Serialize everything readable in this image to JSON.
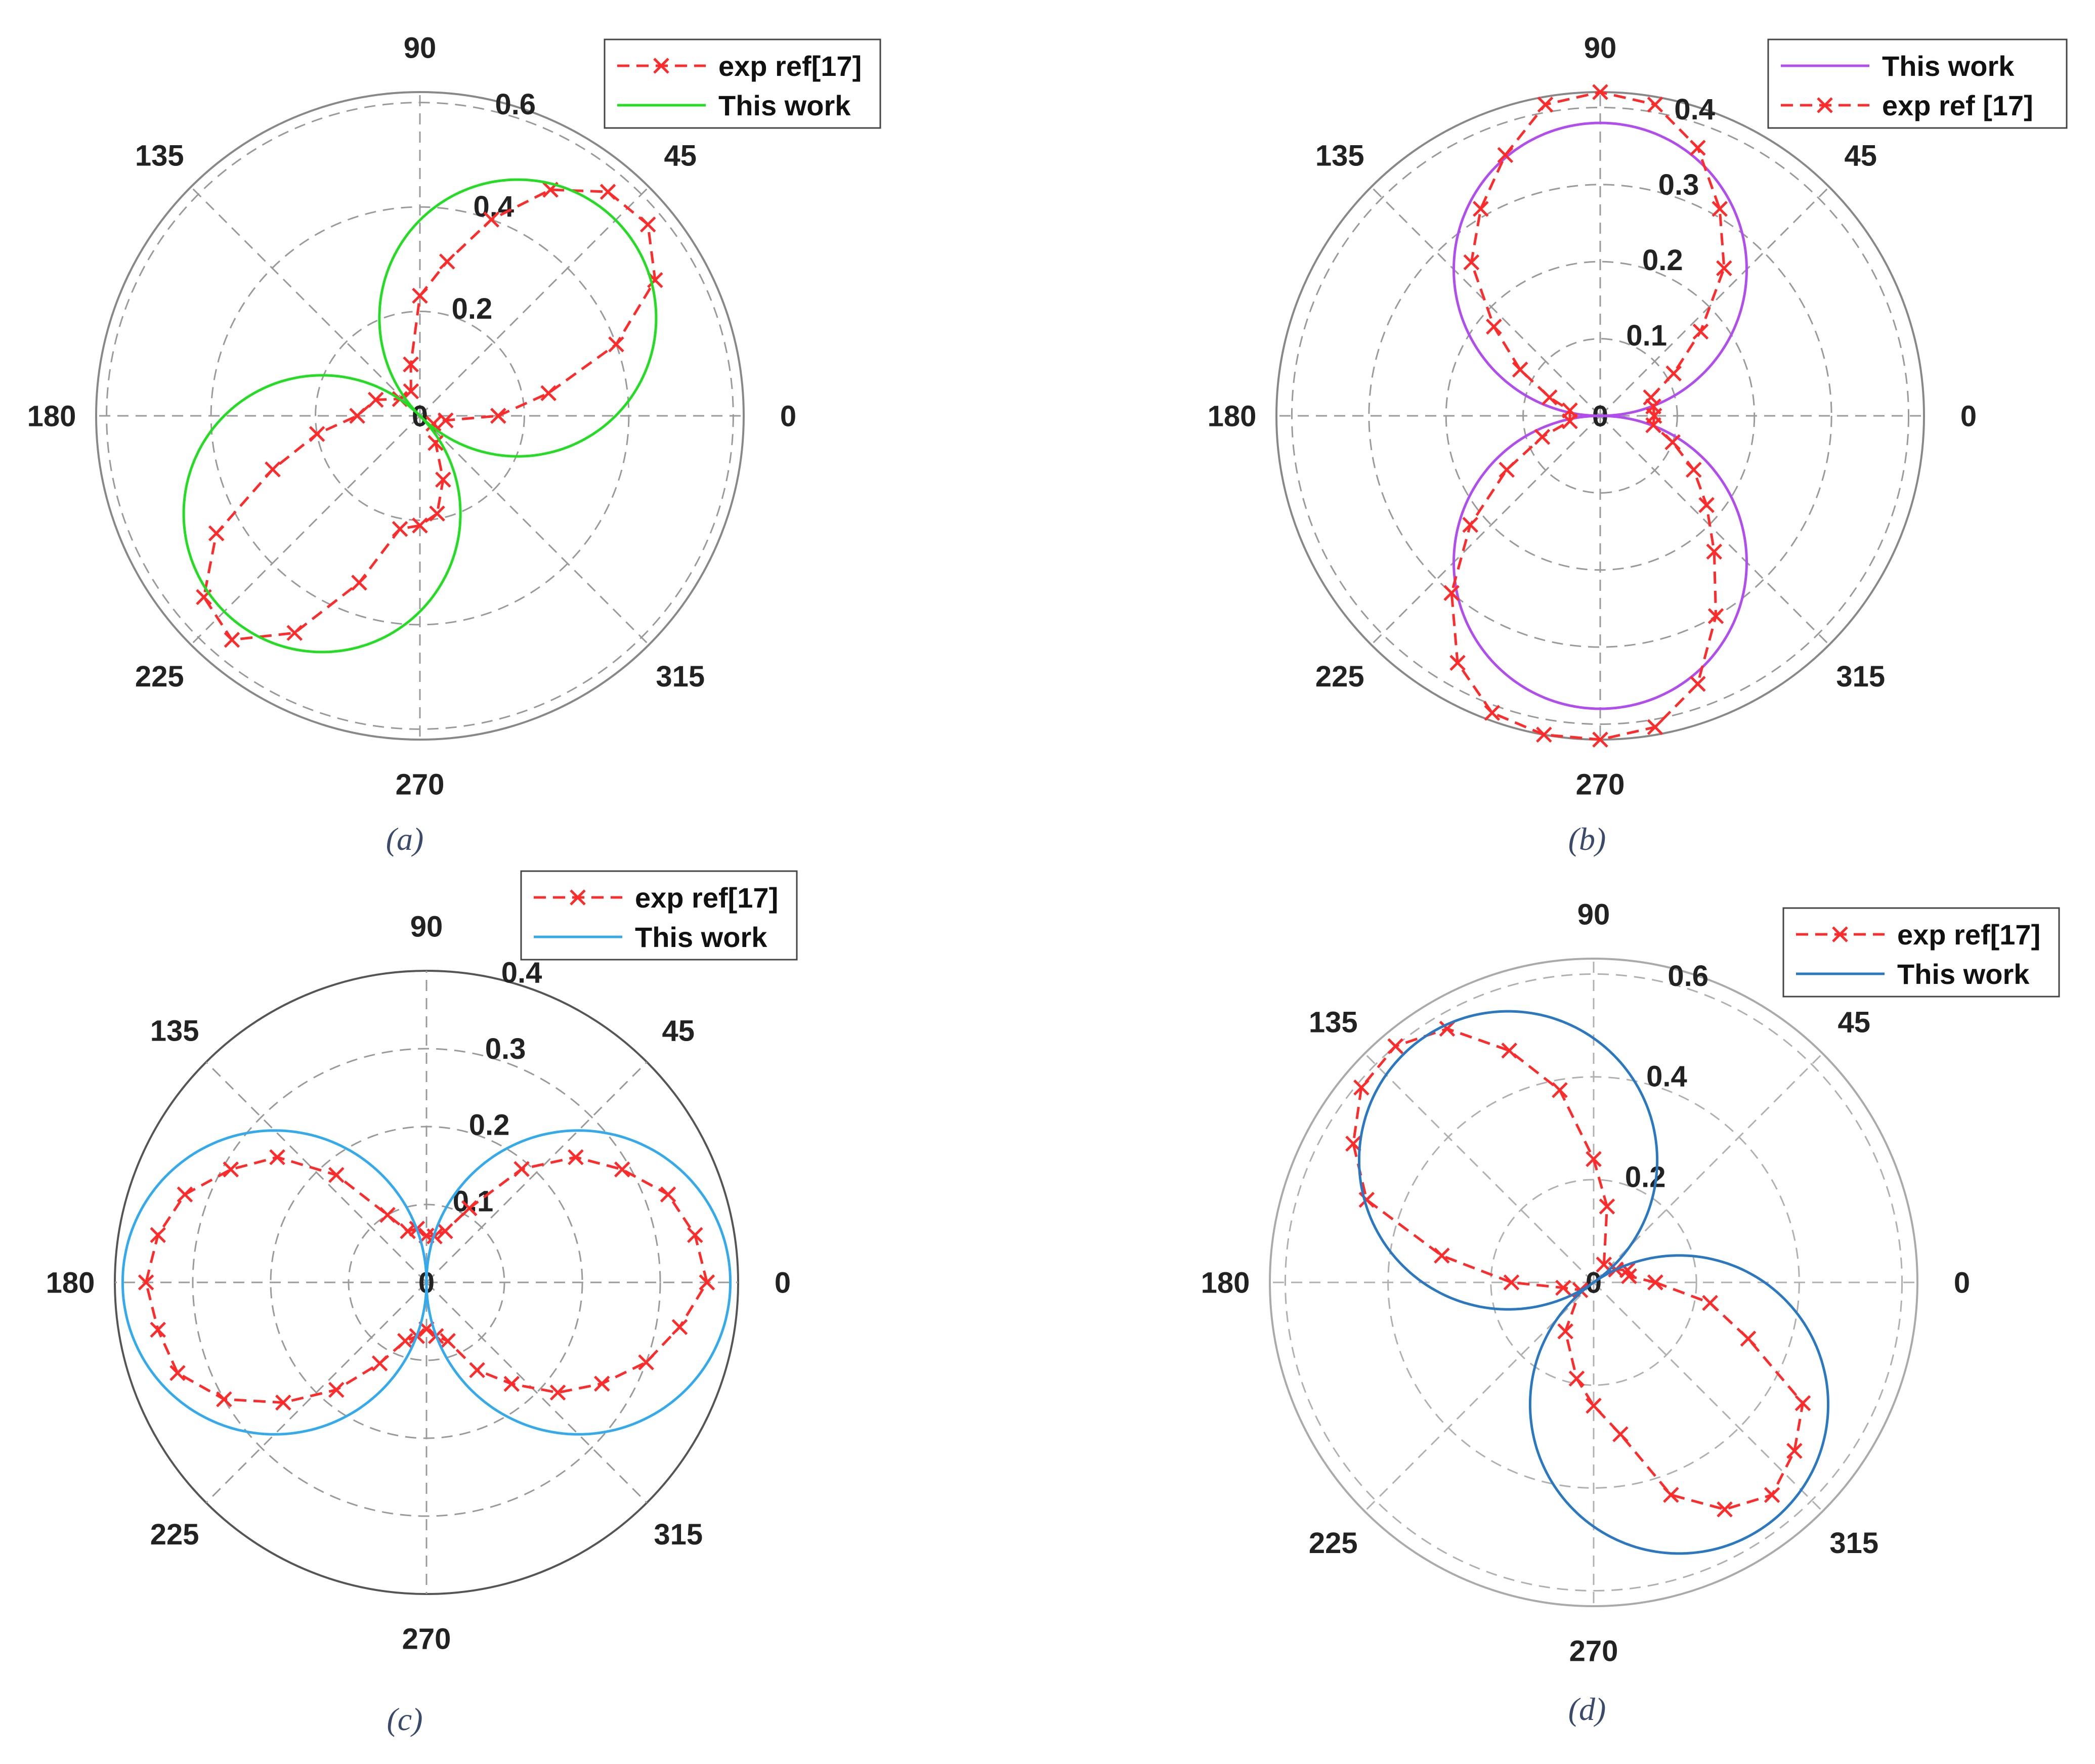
{
  "figure": {
    "panels": [
      {
        "id": "a",
        "caption": "(a)",
        "legend_order": [
          "exp",
          "model"
        ],
        "legend_labels": {
          "exp": "exp ref[17]",
          "model": "This work"
        },
        "colors": {
          "exp": "#ff2a2a",
          "model": "#22dd22",
          "frame": "#888888",
          "grid": "#9a9a9a",
          "text": "#222222"
        }
      },
      {
        "id": "b",
        "caption": "(b)",
        "legend_order": [
          "model",
          "exp"
        ],
        "legend_labels": {
          "exp": "exp ref [17]",
          "model": "This work"
        },
        "colors": {
          "exp": "#ff2a2a",
          "model": "#b04cf0",
          "frame": "#888888",
          "grid": "#9a9a9a",
          "text": "#222222"
        }
      },
      {
        "id": "c",
        "caption": "(c)",
        "legend_order": [
          "exp",
          "model"
        ],
        "legend_labels": {
          "exp": "exp ref[17]",
          "model": "This work"
        },
        "colors": {
          "exp": "#ff2a2a",
          "model": "#33aaee",
          "frame": "#555555",
          "grid": "#9a9a9a",
          "text": "#222222"
        }
      },
      {
        "id": "d",
        "caption": "(d)",
        "legend_order": [
          "exp",
          "model"
        ],
        "legend_labels": {
          "exp": "exp ref[17]",
          "model": "This work"
        },
        "colors": {
          "exp": "#ff2a2a",
          "model": "#2a78c2",
          "frame": "#aaaaaa",
          "grid": "#b0b0b0",
          "text": "#222222"
        }
      }
    ]
  },
  "chart_data": [
    {
      "type": "polar",
      "panel": "a",
      "r_ticks": [
        "0",
        "0.2",
        "0.4",
        "0.6"
      ],
      "r_max": 0.62,
      "r_tick_values": [
        0,
        0.2,
        0.4,
        0.6
      ],
      "theta_ticks": [
        "0",
        "45",
        "90",
        "135",
        "180",
        "225",
        "270",
        "315"
      ],
      "grid": true,
      "legend_position": "top-right",
      "series": [
        {
          "name": "exp ref[17]",
          "style": "dashed-x",
          "points": [
            [
              0,
              0.15
            ],
            [
              10,
              0.25
            ],
            [
              20,
              0.4
            ],
            [
              30,
              0.52
            ],
            [
              40,
              0.57
            ],
            [
              50,
              0.56
            ],
            [
              60,
              0.5
            ],
            [
              70,
              0.4
            ],
            [
              80,
              0.3
            ],
            [
              90,
              0.23
            ],
            [
              100,
              0.1
            ],
            [
              110,
              0.05
            ],
            [
              140,
              0.05
            ],
            [
              160,
              0.09
            ],
            [
              180,
              0.12
            ],
            [
              190,
              0.2
            ],
            [
              200,
              0.3
            ],
            [
              210,
              0.45
            ],
            [
              220,
              0.54
            ],
            [
              230,
              0.56
            ],
            [
              240,
              0.48
            ],
            [
              250,
              0.34
            ],
            [
              260,
              0.22
            ],
            [
              270,
              0.21
            ],
            [
              280,
              0.19
            ],
            [
              290,
              0.13
            ],
            [
              300,
              0.06
            ],
            [
              330,
              0.03
            ],
            [
              350,
              0.05
            ],
            [
              360,
              0.15
            ]
          ]
        },
        {
          "name": "This work",
          "style": "solid",
          "lobe": {
            "peak": 0.53,
            "axis_deg": 45
          }
        }
      ]
    },
    {
      "type": "polar",
      "panel": "b",
      "r_ticks": [
        "0",
        "0.1",
        "0.2",
        "0.3",
        "0.4"
      ],
      "r_max": 0.42,
      "r_tick_values": [
        0,
        0.1,
        0.2,
        0.3,
        0.4
      ],
      "theta_ticks": [
        "0",
        "45",
        "90",
        "135",
        "180",
        "225",
        "270",
        "315"
      ],
      "grid": true,
      "legend_position": "top-right",
      "series": [
        {
          "name": "This work",
          "style": "solid",
          "lobe": {
            "peak": 0.38,
            "axis_deg": 90
          }
        },
        {
          "name": "exp ref [17]",
          "style": "dashed-x",
          "points": [
            [
              0,
              0.07
            ],
            [
              10,
              0.07
            ],
            [
              20,
              0.07
            ],
            [
              30,
              0.11
            ],
            [
              40,
              0.17
            ],
            [
              50,
              0.25
            ],
            [
              60,
              0.31
            ],
            [
              70,
              0.37
            ],
            [
              80,
              0.41
            ],
            [
              90,
              0.42
            ],
            [
              100,
              0.41
            ],
            [
              110,
              0.36
            ],
            [
              120,
              0.31
            ],
            [
              130,
              0.26
            ],
            [
              140,
              0.18
            ],
            [
              150,
              0.12
            ],
            [
              160,
              0.07
            ],
            [
              170,
              0.04
            ],
            [
              190,
              0.04
            ],
            [
              200,
              0.08
            ],
            [
              210,
              0.14
            ],
            [
              220,
              0.22
            ],
            [
              230,
              0.3
            ],
            [
              240,
              0.37
            ],
            [
              250,
              0.41
            ],
            [
              260,
              0.42
            ],
            [
              270,
              0.42
            ],
            [
              280,
              0.41
            ],
            [
              290,
              0.37
            ],
            [
              300,
              0.3
            ],
            [
              310,
              0.23
            ],
            [
              320,
              0.18
            ],
            [
              330,
              0.14
            ],
            [
              340,
              0.1
            ],
            [
              350,
              0.07
            ],
            [
              360,
              0.07
            ]
          ]
        }
      ]
    },
    {
      "type": "polar",
      "panel": "c",
      "r_ticks": [
        "0",
        "0.1",
        "0.2",
        "0.3",
        "0.4"
      ],
      "r_max": 0.4,
      "r_tick_values": [
        0,
        0.1,
        0.2,
        0.3,
        0.4
      ],
      "theta_ticks": [
        "0",
        "45",
        "90",
        "135",
        "180",
        "225",
        "270",
        "315"
      ],
      "grid": true,
      "legend_position": "top-right",
      "series": [
        {
          "name": "exp ref[17]",
          "style": "dashed-x",
          "points": [
            [
              0,
              0.36
            ],
            [
              10,
              0.35
            ],
            [
              20,
              0.33
            ],
            [
              30,
              0.29
            ],
            [
              40,
              0.25
            ],
            [
              50,
              0.19
            ],
            [
              60,
              0.11
            ],
            [
              70,
              0.07
            ],
            [
              80,
              0.06
            ],
            [
              90,
              0.06
            ],
            [
              100,
              0.07
            ],
            [
              110,
              0.07
            ],
            [
              120,
              0.1
            ],
            [
              130,
              0.18
            ],
            [
              140,
              0.25
            ],
            [
              150,
              0.29
            ],
            [
              160,
              0.33
            ],
            [
              170,
              0.35
            ],
            [
              180,
              0.36
            ],
            [
              190,
              0.35
            ],
            [
              200,
              0.34
            ],
            [
              210,
              0.3
            ],
            [
              220,
              0.24
            ],
            [
              230,
              0.18
            ],
            [
              240,
              0.12
            ],
            [
              250,
              0.08
            ],
            [
              260,
              0.07
            ],
            [
              270,
              0.06
            ],
            [
              280,
              0.07
            ],
            [
              290,
              0.08
            ],
            [
              300,
              0.13
            ],
            [
              310,
              0.17
            ],
            [
              320,
              0.22
            ],
            [
              330,
              0.26
            ],
            [
              340,
              0.3
            ],
            [
              350,
              0.33
            ],
            [
              360,
              0.36
            ]
          ]
        },
        {
          "name": "This work",
          "style": "solid",
          "lobe": {
            "peak": 0.39,
            "axis_deg": 0
          }
        }
      ]
    },
    {
      "type": "polar",
      "panel": "d",
      "r_ticks": [
        "0",
        "0.2",
        "0.4",
        "0.6"
      ],
      "r_max": 0.63,
      "r_tick_values": [
        0,
        0.2,
        0.4,
        0.6
      ],
      "theta_ticks": [
        "0",
        "45",
        "90",
        "135",
        "180",
        "225",
        "270",
        "315"
      ],
      "grid": true,
      "legend_position": "top-right",
      "series": [
        {
          "name": "exp ref[17]",
          "style": "dashed-x",
          "points": [
            [
              0,
              0.12
            ],
            [
              10,
              0.07
            ],
            [
              20,
              0.07
            ],
            [
              30,
              0.05
            ],
            [
              60,
              0.04
            ],
            [
              80,
              0.15
            ],
            [
              90,
              0.24
            ],
            [
              100,
              0.38
            ],
            [
              110,
              0.48
            ],
            [
              120,
              0.57
            ],
            [
              130,
              0.6
            ],
            [
              140,
              0.59
            ],
            [
              150,
              0.54
            ],
            [
              160,
              0.47
            ],
            [
              170,
              0.3
            ],
            [
              180,
              0.16
            ],
            [
              190,
              0.06
            ],
            [
              210,
              0.03
            ],
            [
              240,
              0.11
            ],
            [
              260,
              0.19
            ],
            [
              270,
              0.24
            ],
            [
              280,
              0.3
            ],
            [
              290,
              0.44
            ],
            [
              300,
              0.51
            ],
            [
              310,
              0.54
            ],
            [
              320,
              0.51
            ],
            [
              330,
              0.47
            ],
            [
              340,
              0.32
            ],
            [
              350,
              0.23
            ],
            [
              360,
              0.12
            ]
          ]
        },
        {
          "name": "This work",
          "style": "solid",
          "lobe": {
            "peak": 0.58,
            "axis_deg": 125
          }
        }
      ]
    }
  ]
}
